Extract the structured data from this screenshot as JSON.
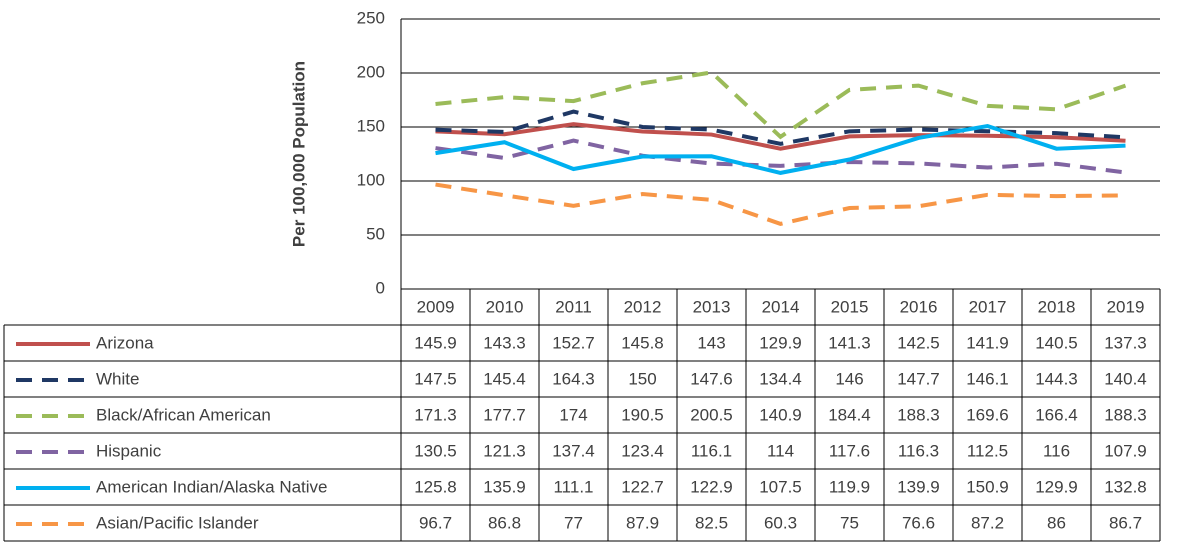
{
  "chart_data": {
    "type": "line",
    "y_label": "Per 100,000 Population",
    "categories": [
      "2009",
      "2010",
      "2011",
      "2012",
      "2013",
      "2014",
      "2015",
      "2016",
      "2017",
      "2018",
      "2019"
    ],
    "ylim": [
      0,
      250
    ],
    "yticks": [
      0,
      50,
      100,
      150,
      200,
      250
    ],
    "grid": true,
    "series": [
      {
        "name": "Arizona",
        "color": "#c0504d",
        "dashed": false,
        "values": [
          145.9,
          143.3,
          152.7,
          145.8,
          143,
          129.9,
          141.3,
          142.5,
          141.9,
          140.5,
          137.3
        ]
      },
      {
        "name": "White",
        "color": "#1f3864",
        "dashed": true,
        "values": [
          147.5,
          145.4,
          164.3,
          150,
          147.6,
          134.4,
          146,
          147.7,
          146.1,
          144.3,
          140.4
        ]
      },
      {
        "name": "Black/African American",
        "color": "#9bbb59",
        "dashed": true,
        "values": [
          171.3,
          177.7,
          174,
          190.5,
          200.5,
          140.9,
          184.4,
          188.3,
          169.6,
          166.4,
          188.3
        ]
      },
      {
        "name": "Hispanic",
        "color": "#8064a2",
        "dashed": true,
        "values": [
          130.5,
          121.3,
          137.4,
          123.4,
          116.1,
          114,
          117.6,
          116.3,
          112.5,
          116,
          107.9
        ]
      },
      {
        "name": "American Indian/Alaska Native",
        "color": "#00b0f0",
        "dashed": false,
        "values": [
          125.8,
          135.9,
          111.1,
          122.7,
          122.9,
          107.5,
          119.9,
          139.9,
          150.9,
          129.9,
          132.8
        ]
      },
      {
        "name": "Asian/Pacific Islander",
        "color": "#f79646",
        "dashed": true,
        "values": [
          96.7,
          86.8,
          77,
          87.9,
          82.5,
          60.3,
          75,
          76.6,
          87.2,
          86,
          86.7
        ]
      }
    ]
  }
}
